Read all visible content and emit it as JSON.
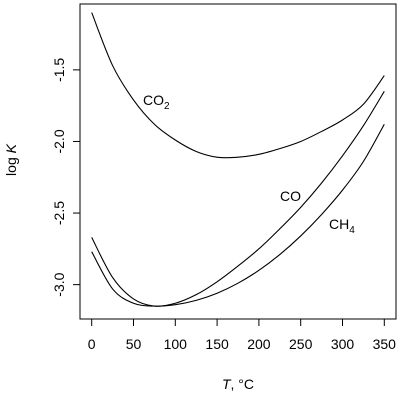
{
  "chart_data": {
    "type": "line",
    "xlabel": "T, °C",
    "xlabel_italic": "T",
    "xlabel_rest": ", °C",
    "ylabel": "log K",
    "ylabel_plain": "log ",
    "ylabel_italic": "K",
    "xlim": [
      -14,
      364
    ],
    "ylim": [
      -3.24,
      -1.04
    ],
    "x_ticks": [
      0,
      50,
      100,
      150,
      200,
      250,
      300,
      350
    ],
    "x_tick_labels": [
      "0",
      "50",
      "100",
      "150",
      "200",
      "250",
      "300",
      "350"
    ],
    "y_ticks": [
      -3.0,
      -2.5,
      -2.0,
      -1.5
    ],
    "y_tick_labels": [
      "-3.0",
      "-2.5",
      "-2.0",
      "-1.5"
    ],
    "grid": false,
    "legend": "none",
    "series": [
      {
        "name": "CO2",
        "label_main": "CO",
        "label_sub": "2",
        "x": [
          0,
          25,
          50,
          75,
          100,
          125,
          150,
          175,
          200,
          225,
          250,
          275,
          300,
          325,
          350
        ],
        "y": [
          -1.1,
          -1.47,
          -1.71,
          -1.88,
          -1.99,
          -2.07,
          -2.11,
          -2.11,
          -2.09,
          -2.05,
          -2.0,
          -1.93,
          -1.85,
          -1.74,
          -1.54
        ]
      },
      {
        "name": "CO",
        "label_main": "CO",
        "label_sub": "",
        "x": [
          0,
          25,
          50,
          75,
          100,
          125,
          150,
          175,
          200,
          225,
          250,
          275,
          300,
          325,
          350
        ],
        "y": [
          -2.67,
          -2.95,
          -3.1,
          -3.15,
          -3.13,
          -3.07,
          -2.98,
          -2.87,
          -2.75,
          -2.61,
          -2.46,
          -2.29,
          -2.1,
          -1.89,
          -1.65
        ]
      },
      {
        "name": "CH4",
        "label_main": "CH",
        "label_sub": "4",
        "x": [
          0,
          25,
          50,
          75,
          100,
          125,
          150,
          175,
          200,
          225,
          250,
          275,
          300,
          325,
          350
        ],
        "y": [
          -2.77,
          -3.03,
          -3.13,
          -3.15,
          -3.14,
          -3.11,
          -3.06,
          -2.99,
          -2.9,
          -2.79,
          -2.66,
          -2.51,
          -2.34,
          -2.14,
          -1.88
        ]
      }
    ]
  }
}
